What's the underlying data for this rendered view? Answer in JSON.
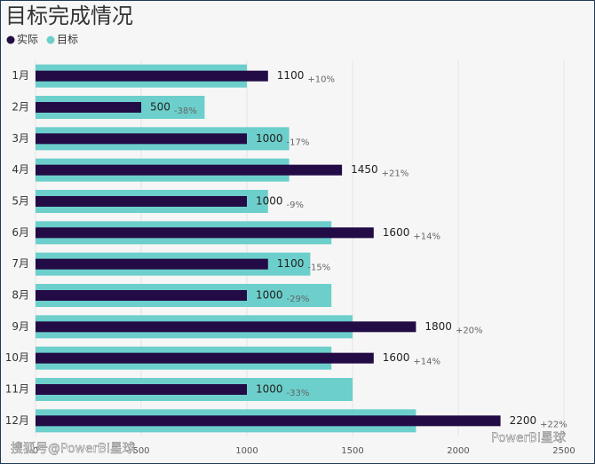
{
  "chart_data": {
    "type": "bar",
    "orientation": "horizontal",
    "title": "目标完成情况",
    "categories": [
      "1月",
      "2月",
      "3月",
      "4月",
      "5月",
      "6月",
      "7月",
      "8月",
      "9月",
      "10月",
      "11月",
      "12月"
    ],
    "series": [
      {
        "name": "实际",
        "color": "#230b45",
        "values": [
          1100,
          500,
          1000,
          1450,
          1000,
          1600,
          1100,
          1000,
          1800,
          1600,
          1000,
          2200
        ]
      },
      {
        "name": "目标",
        "color": "#6ccfcb",
        "values": [
          1000,
          800,
          1200,
          1200,
          1100,
          1400,
          1300,
          1400,
          1500,
          1400,
          1500,
          1800
        ]
      }
    ],
    "annotations": [
      "+10%",
      "-38%",
      "-17%",
      "+21%",
      "-9%",
      "+14%",
      "-15%",
      "-29%",
      "+20%",
      "+14%",
      "-33%",
      "+22%"
    ],
    "xlim": [
      0,
      2500
    ],
    "xticks": [
      0,
      500,
      1000,
      1500,
      2000,
      2500
    ],
    "grid": true,
    "legend": "top-left",
    "watermarks": [
      "搜狐号@PowerBI星球",
      "PowerBI星球"
    ]
  }
}
